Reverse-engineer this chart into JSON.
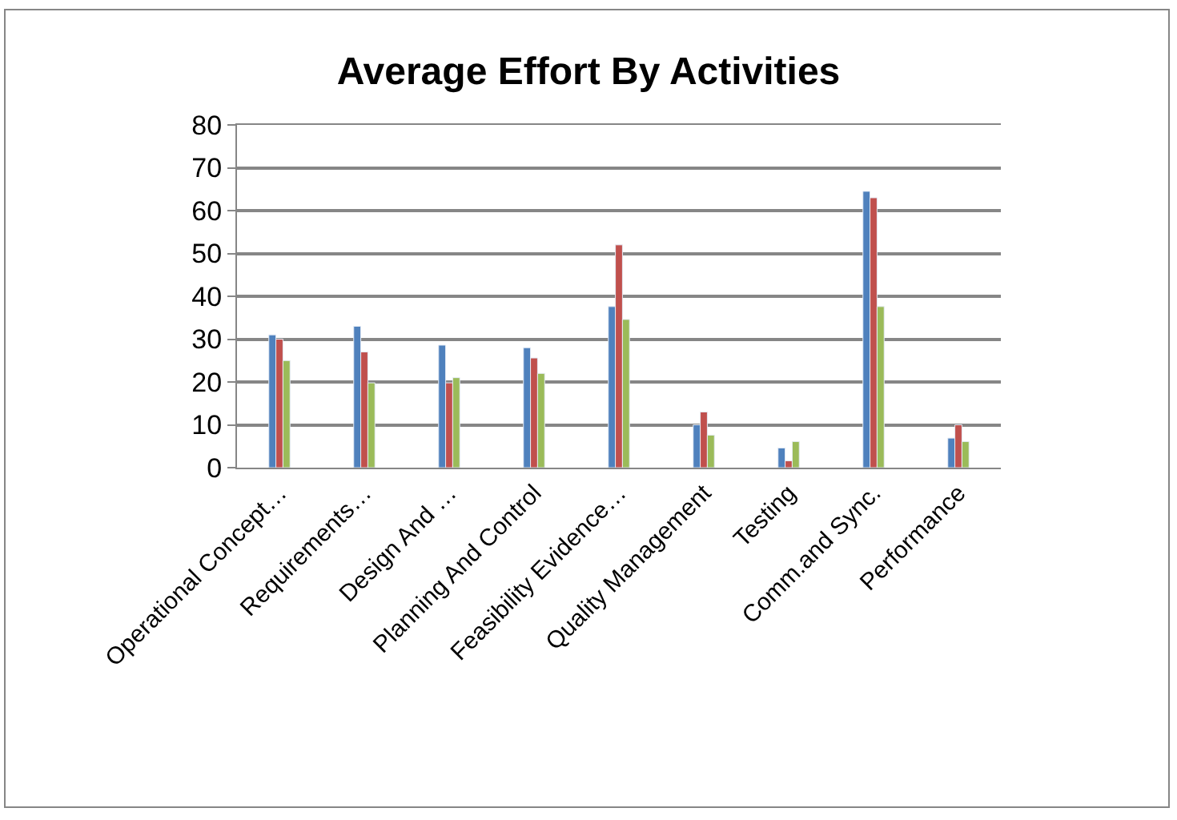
{
  "chart_data": {
    "type": "bar",
    "title": "Average Effort By Activities",
    "categories": [
      "Operational Concept…",
      "Requirements…",
      "Design And …",
      "Planning And Control",
      "Feasibility Evidence…",
      "Quality Management",
      "Testing",
      "Comm.and Sync.",
      "Performance"
    ],
    "series": [
      {
        "color": "#4f81bd",
        "values": [
          31,
          33,
          28.6,
          28,
          37.6,
          10,
          4.6,
          64.5,
          6.9
        ]
      },
      {
        "color": "#c0504d",
        "values": [
          30,
          27,
          19.8,
          25.6,
          52,
          13,
          1.6,
          63,
          10
        ]
      },
      {
        "color": "#9bbb59",
        "values": [
          25,
          19.8,
          21,
          22,
          34.6,
          7.6,
          6.1,
          37.6,
          6.1
        ]
      }
    ],
    "ylim": [
      0,
      80
    ],
    "yticks": [
      0,
      10,
      20,
      30,
      40,
      50,
      60,
      70,
      80
    ],
    "grid": "y"
  }
}
